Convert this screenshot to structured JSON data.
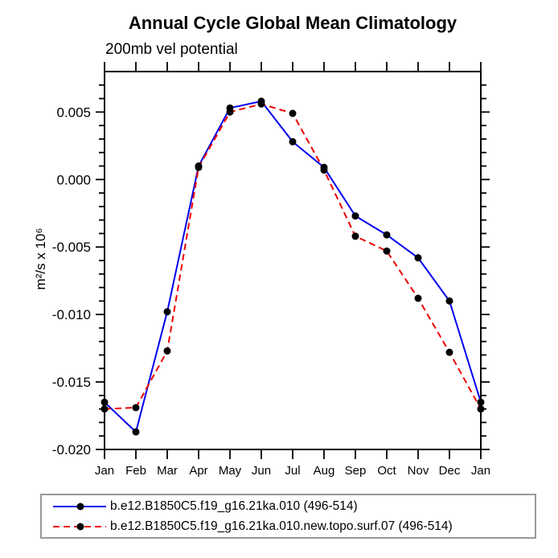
{
  "chart_data": {
    "type": "line",
    "title": "Annual Cycle Global Mean Climatology",
    "subtitle": "200mb vel potential",
    "ylabel": "m²/s x 10⁶",
    "xlabel": "",
    "categories": [
      "Jan",
      "Feb",
      "Mar",
      "Apr",
      "May",
      "Jun",
      "Jul",
      "Aug",
      "Sep",
      "Oct",
      "Nov",
      "Dec",
      "Jan"
    ],
    "ylim": [
      -0.02,
      0.008
    ],
    "y_major_ticks": [
      0.005,
      0.0,
      -0.005,
      -0.01,
      -0.015,
      -0.02
    ],
    "y_minor_step": 0.001,
    "grid": false,
    "legend_position": "bottom",
    "marker_color": "#000000",
    "axis_color": "#000000",
    "series": [
      {
        "name": "b.e12.B1850C5.f19_g16.21ka.010 (496-514)",
        "color": "#0000ee",
        "style": "solid",
        "marker": "black-dot",
        "values": [
          -0.0165,
          -0.0187,
          -0.0098,
          0.001,
          0.0053,
          0.0058,
          0.0028,
          0.0009,
          -0.0027,
          -0.0041,
          -0.0058,
          -0.009,
          -0.0165
        ]
      },
      {
        "name": "b.e12.B1850C5.f19_g16.21ka.010.new.topo.surf.07 (496-514)",
        "color": "#ee0000",
        "style": "dashed",
        "marker": "black-dot",
        "values": [
          -0.017,
          -0.0169,
          -0.0127,
          0.0009,
          0.005,
          0.0056,
          0.0049,
          0.0007,
          -0.0042,
          -0.0053,
          -0.0088,
          -0.0128,
          -0.017
        ]
      }
    ]
  }
}
